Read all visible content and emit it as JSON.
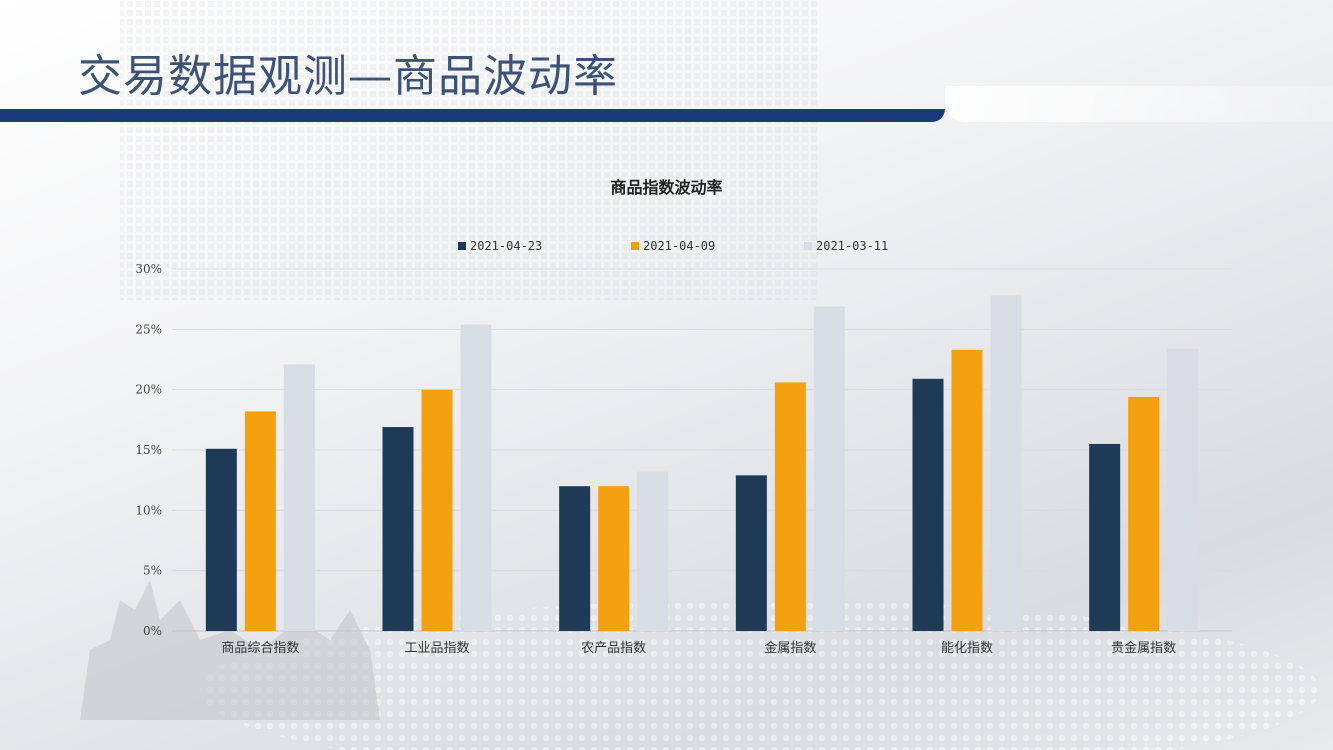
{
  "slide": {
    "title": "交易数据观测—商品波动率"
  },
  "colors": {
    "title": "#3d5275",
    "bar_accent": "#1a3a7a"
  },
  "chart_data": {
    "type": "bar",
    "title": "商品指数波动率",
    "categories": [
      "商品综合指数",
      "工业品指数",
      "农产品指数",
      "金属指数",
      "能化指数",
      "贵金属指数"
    ],
    "series": [
      {
        "name": "2021-04-23",
        "color": "#1f3a56",
        "values": [
          15.1,
          16.9,
          12.0,
          12.9,
          20.9,
          15.5
        ]
      },
      {
        "name": "2021-04-09",
        "color": "#f5a00f",
        "values": [
          18.2,
          20.0,
          12.0,
          20.6,
          23.3,
          19.4
        ]
      },
      {
        "name": "2021-03-11",
        "color": "#d6dde5",
        "values": [
          22.1,
          25.4,
          13.2,
          26.9,
          27.8,
          23.4
        ]
      }
    ],
    "y_ticks": [
      "0%",
      "5%",
      "10%",
      "15%",
      "20%",
      "25%",
      "30%"
    ],
    "ylim": [
      0,
      30
    ],
    "xlabel": "",
    "ylabel": "",
    "grid": true,
    "legend_position": "top"
  }
}
